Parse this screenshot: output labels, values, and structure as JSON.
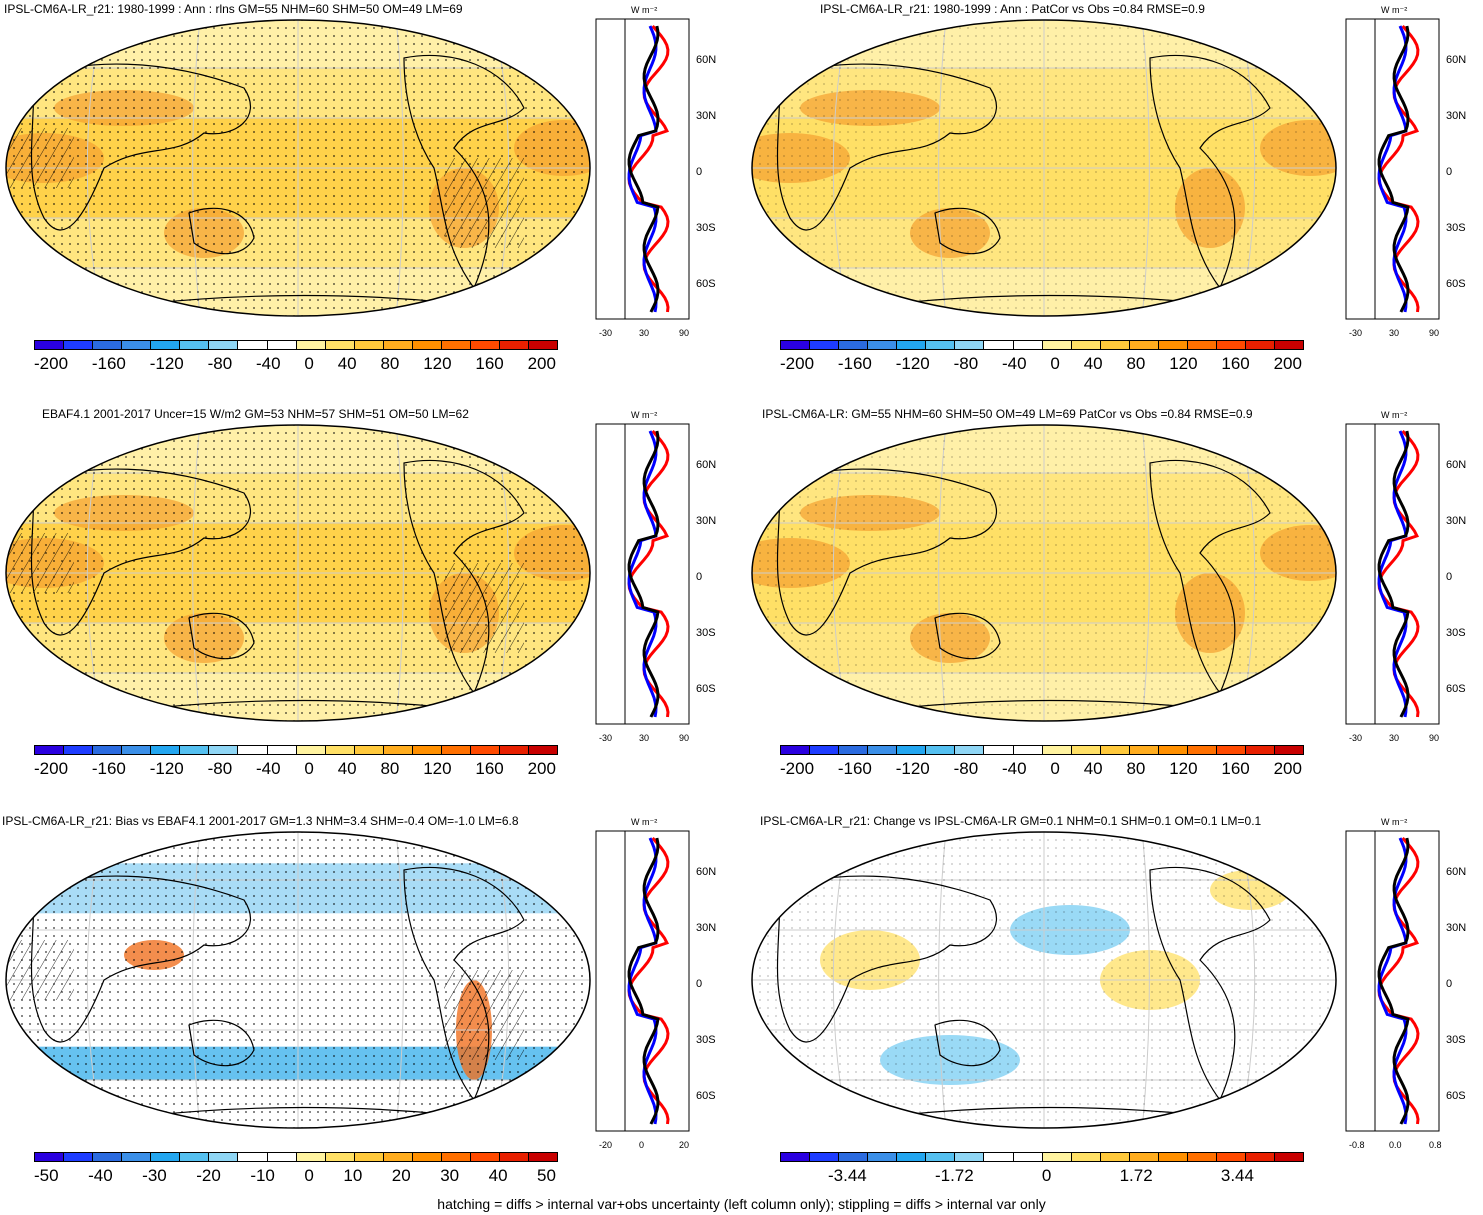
{
  "panels": [
    {
      "title": "IPSL-CM6A-LR_r21: 1980-1999 : Ann : rlns GM=55 NHM=60 SHM=50 OM=49 LM=69",
      "colorbar_labels": [
        "-200",
        "-160",
        "-120",
        "-80",
        "-40",
        "0",
        "40",
        "80",
        "120",
        "160",
        "200"
      ],
      "zonal_x_labels": [
        "-30",
        "30",
        "90"
      ],
      "zonal_unit": "W m⁻²",
      "scheme": "warm",
      "hatch": true
    },
    {
      "title": "IPSL-CM6A-LR_r21: 1980-1999 : Ann : PatCor vs Obs =0.84 RMSE=0.9",
      "colorbar_labels": [
        "-200",
        "-160",
        "-120",
        "-80",
        "-40",
        "0",
        "40",
        "80",
        "120",
        "160",
        "200"
      ],
      "zonal_x_labels": [
        "-30",
        "30",
        "90"
      ],
      "zonal_unit": "W m⁻²",
      "scheme": "warm2",
      "hatch": false
    },
    {
      "title": "EBAF4.1 2001-2017 Uncer=15 W/m2 GM=53 NHM=57 SHM=51 OM=50 LM=62",
      "colorbar_labels": [
        "-200",
        "-160",
        "-120",
        "-80",
        "-40",
        "0",
        "40",
        "80",
        "120",
        "160",
        "200"
      ],
      "zonal_x_labels": [
        "-30",
        "30",
        "90"
      ],
      "zonal_unit": "W m⁻²",
      "scheme": "warm",
      "hatch": true
    },
    {
      "title": "IPSL-CM6A-LR: GM=55 NHM=60 SHM=50 OM=49 LM=69 PatCor vs Obs =0.84 RMSE=0.9",
      "colorbar_labels": [
        "-200",
        "-160",
        "-120",
        "-80",
        "-40",
        "0",
        "40",
        "80",
        "120",
        "160",
        "200"
      ],
      "zonal_x_labels": [
        "-30",
        "30",
        "90"
      ],
      "zonal_unit": "W m⁻²",
      "scheme": "warm2",
      "hatch": false
    },
    {
      "title": "IPSL-CM6A-LR_r21: Bias vs EBAF4.1 2001-2017 GM=1.3 NHM=3.4 SHM=-0.4 OM=-1.0 LM=6.8",
      "colorbar_labels": [
        "-50",
        "-40",
        "-30",
        "-20",
        "-10",
        "0",
        "10",
        "20",
        "30",
        "40",
        "50"
      ],
      "zonal_x_labels": [
        "-20",
        "0",
        "20"
      ],
      "zonal_unit": "W m⁻²",
      "scheme": "bias",
      "hatch": true
    },
    {
      "title": "IPSL-CM6A-LR_r21: Change vs IPSL-CM6A-LR GM=0.1 NHM=0.1 SHM=0.1 OM=0.1 LM=0.1",
      "colorbar_labels": [
        "-3.44",
        "-1.72",
        "0",
        "1.72",
        "3.44"
      ],
      "zonal_x_labels": [
        "-0.8",
        "0.0",
        "0.8"
      ],
      "zonal_unit": "W m⁻²",
      "scheme": "change",
      "hatch": false
    }
  ],
  "lat_labels": [
    "60N",
    "30N",
    "0",
    "30S",
    "60S"
  ],
  "colorbar_colors": [
    "#2a00e0",
    "#1e3cff",
    "#2b6be0",
    "#3b8fe8",
    "#23a6f0",
    "#55c0f0",
    "#8fd6f5",
    "#ffffff",
    "#ffffff",
    "#fff3a0",
    "#ffe066",
    "#ffc93c",
    "#ffad1f",
    "#ff9000",
    "#ff7000",
    "#ff4a00",
    "#e82000",
    "#c80000"
  ],
  "footer": "hatching = diffs > internal var+obs uncertainty (left column only); stippling = diffs > internal var only"
}
